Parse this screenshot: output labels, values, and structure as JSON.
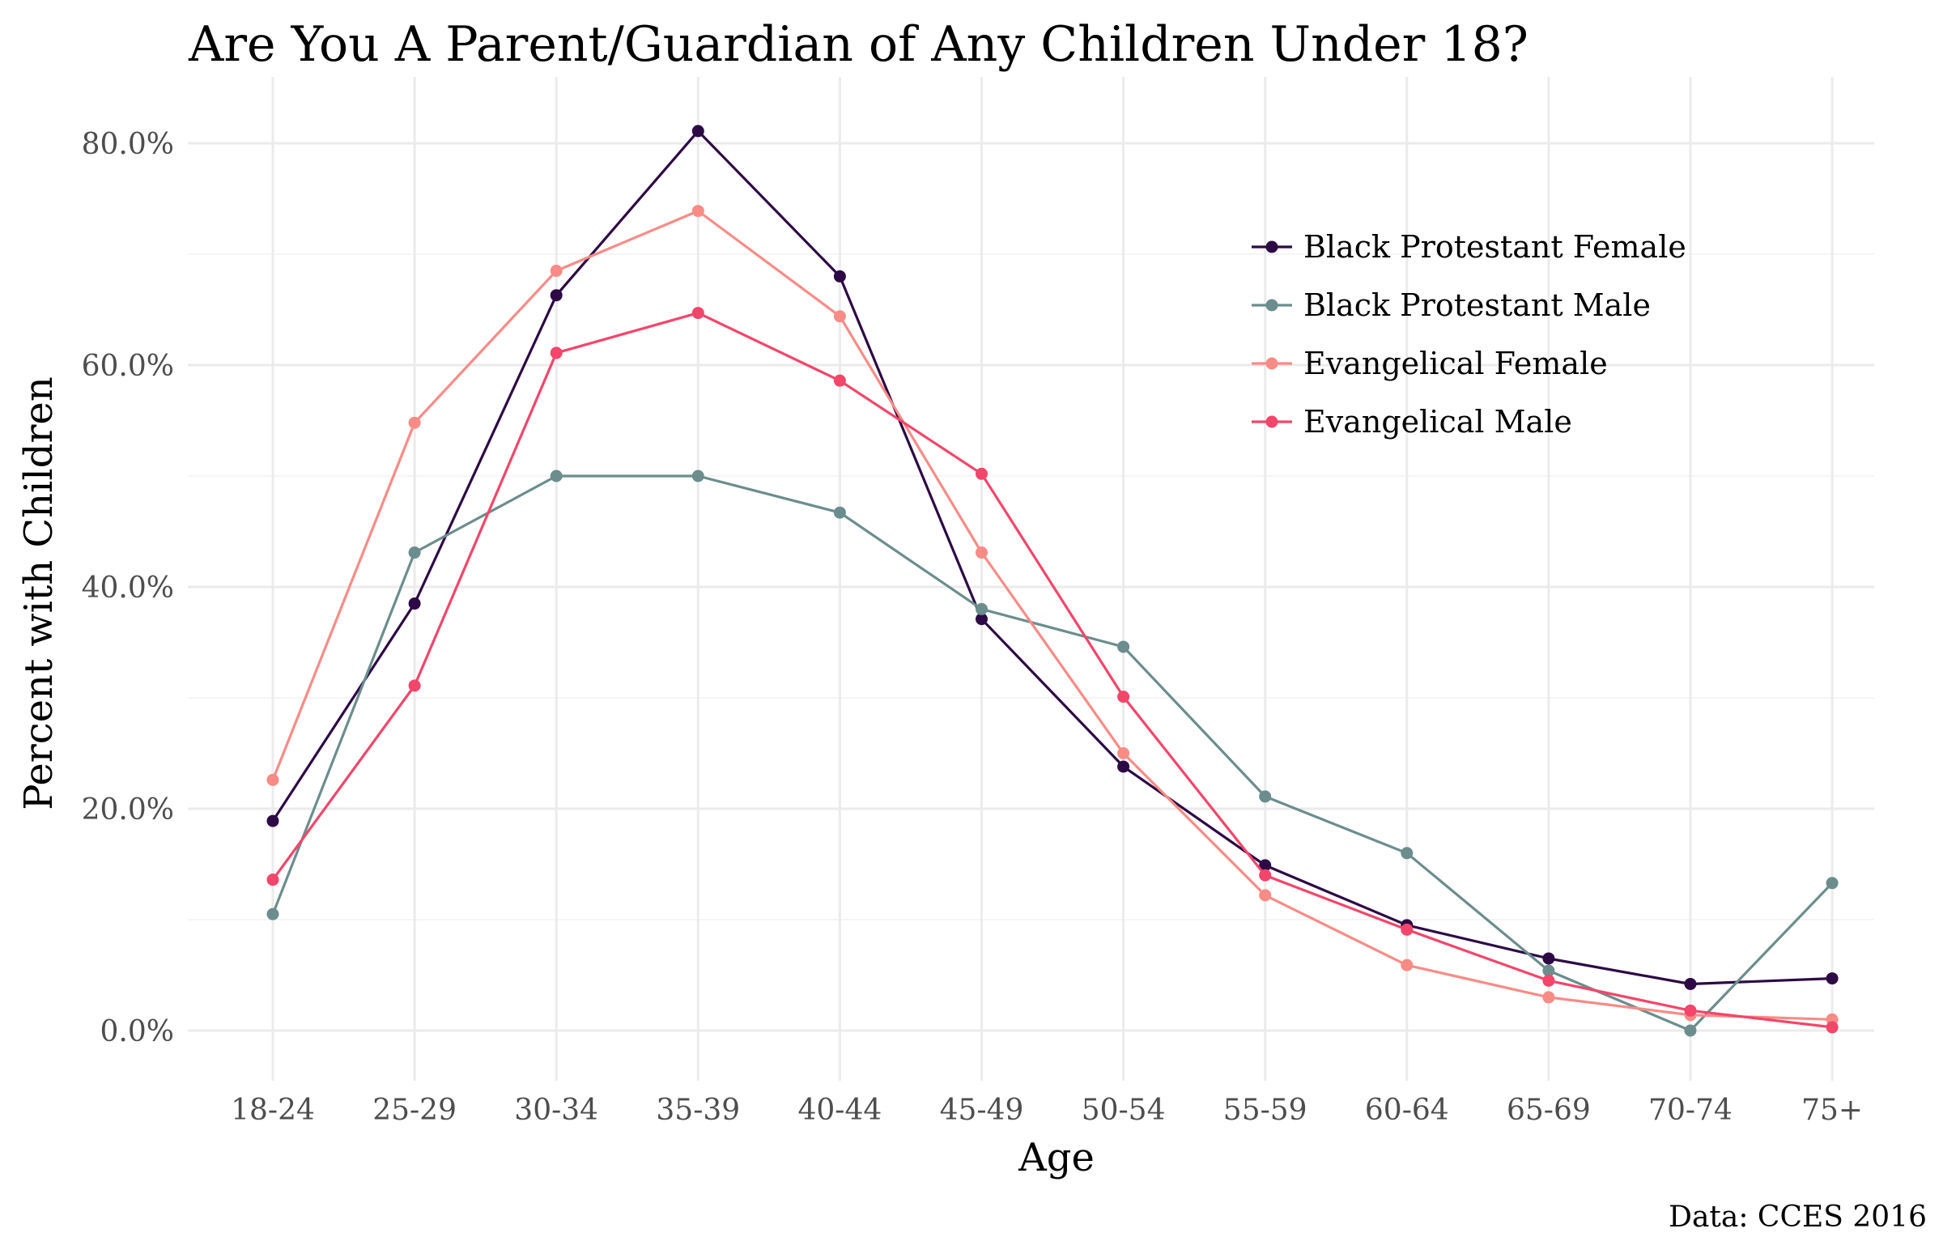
{
  "chart_data": {
    "type": "line",
    "title": "Are You A Parent/Guardian of Any Children Under 18?",
    "xlabel": "Age",
    "ylabel": "Percent with Children",
    "caption": "Data: CCES 2016",
    "categories": [
      "18-24",
      "25-29",
      "30-34",
      "35-39",
      "40-44",
      "45-49",
      "50-54",
      "55-59",
      "60-64",
      "65-69",
      "70-74",
      "75+"
    ],
    "ylim": [
      0,
      0.8
    ],
    "yticks": [
      0,
      0.2,
      0.4,
      0.6,
      0.8
    ],
    "ytick_labels": [
      "0.0%",
      "20.0%",
      "40.0%",
      "60.0%",
      "80.0%"
    ],
    "grid": true,
    "legend_position": "top-right",
    "series": [
      {
        "name": "Black Protestant Female",
        "color": "#2d0a45",
        "values": [
          0.189,
          0.385,
          0.663,
          0.811,
          0.68,
          0.371,
          0.238,
          0.149,
          0.095,
          0.065,
          0.042,
          0.047
        ]
      },
      {
        "name": "Black Protestant Male",
        "color": "#6b8d8d",
        "values": [
          0.105,
          0.431,
          0.5,
          0.5,
          0.467,
          0.38,
          0.346,
          0.211,
          0.16,
          0.054,
          0.0,
          0.133
        ]
      },
      {
        "name": "Evangelical Female",
        "color": "#f98b86",
        "values": [
          0.226,
          0.548,
          0.685,
          0.739,
          0.644,
          0.431,
          0.25,
          0.122,
          0.059,
          0.03,
          0.014,
          0.01
        ]
      },
      {
        "name": "Evangelical Male",
        "color": "#f4456a",
        "values": [
          0.136,
          0.311,
          0.611,
          0.647,
          0.586,
          0.502,
          0.301,
          0.14,
          0.091,
          0.045,
          0.018,
          0.003
        ]
      }
    ]
  }
}
